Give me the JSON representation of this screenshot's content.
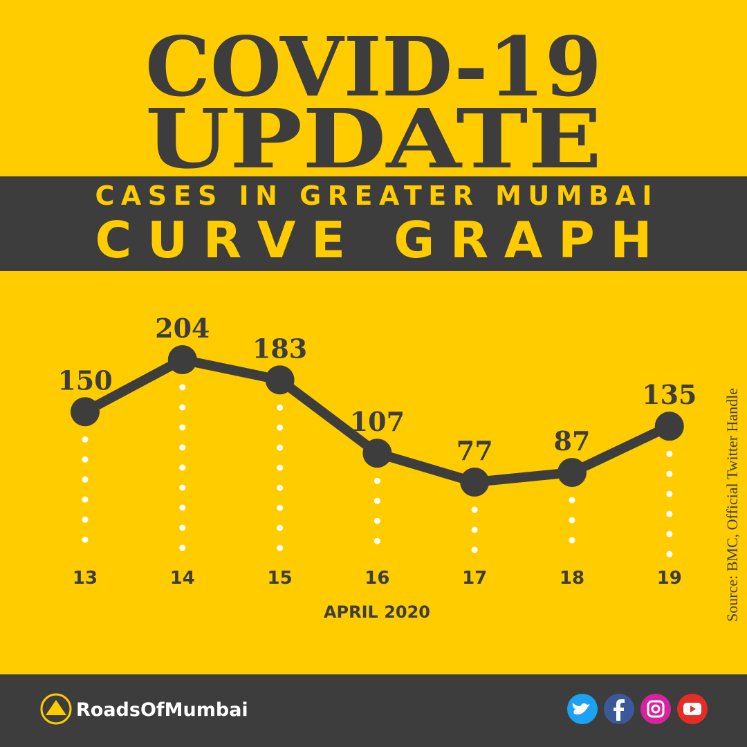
{
  "chart_data": {
    "type": "line",
    "title": "COVID-19",
    "title_line2": "UPDATE",
    "subtitle": "CASES IN GREATER MUMBAI",
    "subtitle_line2": "CURVE GRAPH",
    "x_label": "APRIL 2020",
    "source": "Source: BMC, Official Twitter Handle",
    "brand": "RoadsOfMumbai",
    "categories": [
      "13",
      "14",
      "15",
      "16",
      "17",
      "18",
      "19"
    ],
    "values": [
      150,
      204,
      183,
      107,
      77,
      87,
      135
    ],
    "color": "#3d3d3d"
  }
}
